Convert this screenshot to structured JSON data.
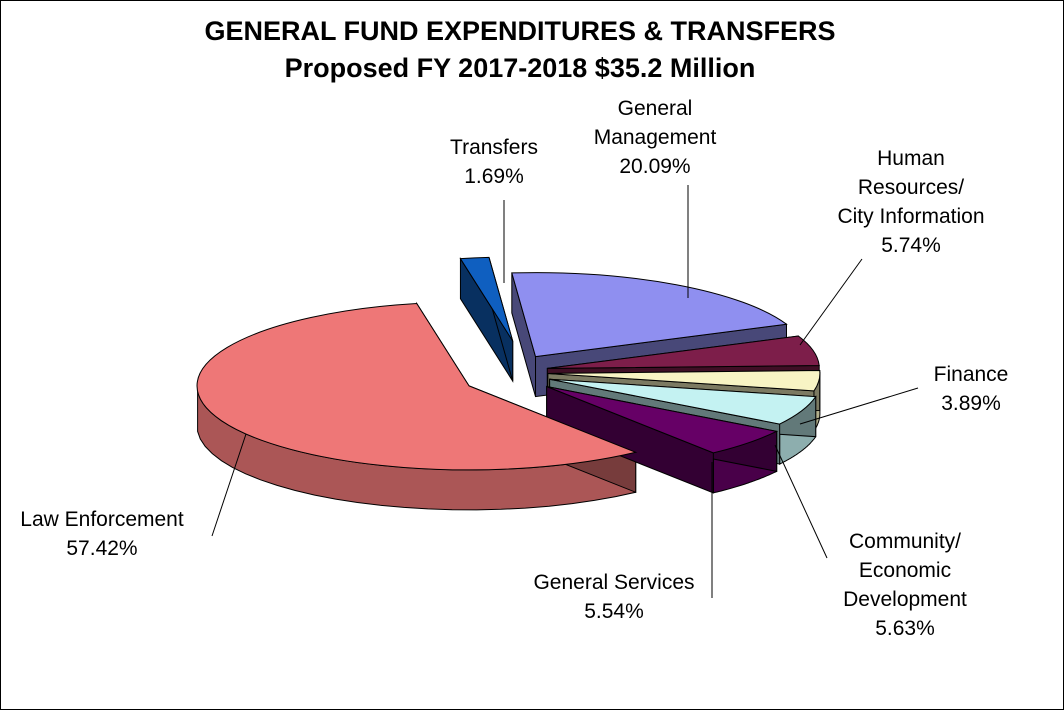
{
  "chart_data": {
    "type": "pie",
    "title": "GENERAL FUND EXPENDITURES & TRANSFERS",
    "subtitle": "Proposed FY 2017-2018 $35.2 Million",
    "slices": [
      {
        "label_lines": [
          "General",
          "Management"
        ],
        "value_text": "20.09%",
        "value": 20.09,
        "color": "#8f8ff0"
      },
      {
        "label_lines": [
          "Human",
          "Resources/",
          "City Information"
        ],
        "value_text": "5.74%",
        "value": 5.74,
        "color": "#7d1e4a"
      },
      {
        "label_lines": [
          "Finance"
        ],
        "value_text": "3.89%",
        "value": 3.89,
        "color": "#f8f4c4"
      },
      {
        "label_lines": [
          "Community/",
          "Economic",
          "Development"
        ],
        "value_text": "5.63%",
        "value": 5.63,
        "color": "#c4f2f2"
      },
      {
        "label_lines": [
          "General Services"
        ],
        "value_text": "5.54%",
        "value": 5.54,
        "color": "#660066"
      },
      {
        "label_lines": [
          "Law Enforcement"
        ],
        "value_text": "57.42%",
        "value": 57.42,
        "color": "#ee7777"
      },
      {
        "label_lines": [
          "Transfers"
        ],
        "value_text": "1.69%",
        "value": 1.69,
        "color": "#0f5fc0"
      }
    ]
  }
}
